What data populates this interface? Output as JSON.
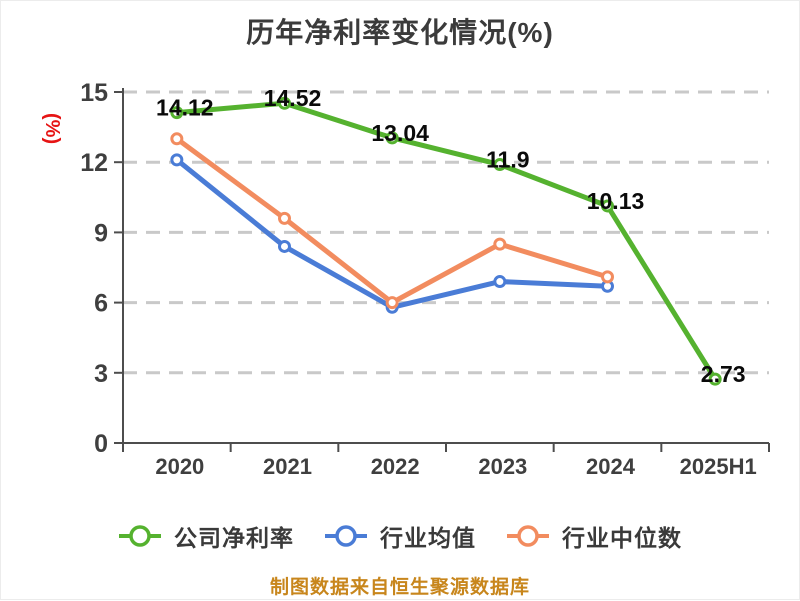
{
  "title": "历年净利率变化情况(%)",
  "caption": "制图数据来自恒生聚源数据库",
  "colors": {
    "company_line": "#55b22f",
    "industry_avg_line": "#4a7cd6",
    "industry_median_line": "#f28c5f",
    "marker_fill": "#ffffff",
    "grid": "#c9c9c9",
    "axis": "#4d4d4d",
    "tick_text": "#3f3f3f",
    "title_text": "#3b3b3b",
    "data_label_text": "#0a0a0a",
    "y_unit_text": "#e61414",
    "caption_text": "#c8861c"
  },
  "chart_data": {
    "type": "line",
    "title": "历年净利率变化情况(%)",
    "xlabel": "",
    "ylabel": "(%)",
    "categories": [
      "2020",
      "2021",
      "2022",
      "2023",
      "2024",
      "2025H1"
    ],
    "ylim": [
      0,
      15
    ],
    "yticks": [
      0,
      3,
      6,
      9,
      12,
      15
    ],
    "grid": "horizontal-dashed",
    "legend_position": "bottom",
    "series": [
      {
        "name": "公司净利率",
        "color": "#55b22f",
        "values": [
          14.12,
          14.52,
          13.04,
          11.9,
          10.13,
          2.73
        ],
        "data_labels": [
          "14.12",
          "14.52",
          "13.04",
          "11.9",
          "10.13",
          "2.73"
        ]
      },
      {
        "name": "行业均值",
        "color": "#4a7cd6",
        "values": [
          12.1,
          8.4,
          5.8,
          6.9,
          6.7,
          null
        ],
        "data_labels": null
      },
      {
        "name": "行业中位数",
        "color": "#f28c5f",
        "values": [
          13.0,
          9.6,
          6.0,
          8.5,
          7.1,
          null
        ],
        "data_labels": null
      }
    ]
  }
}
